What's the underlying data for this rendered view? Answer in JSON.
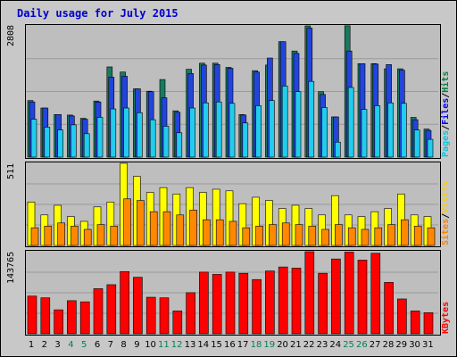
{
  "chart_data": [
    {
      "type": "bar",
      "panel": "hits-files-pages",
      "title": "Daily usage for July 2015",
      "categories": [
        "1",
        "2",
        "3",
        "4",
        "5",
        "6",
        "7",
        "8",
        "9",
        "10",
        "11",
        "12",
        "13",
        "14",
        "15",
        "16",
        "17",
        "18",
        "19",
        "20",
        "21",
        "22",
        "23",
        "24",
        "25",
        "26",
        "27",
        "28",
        "29",
        "30",
        "31"
      ],
      "weekend_days": [
        "4",
        "5",
        "11",
        "12",
        "18",
        "19",
        "25",
        "26"
      ],
      "ymax_label": "2808",
      "ylim": [
        0,
        2808
      ],
      "grid": true,
      "legend": [
        {
          "text": "Pages",
          "color": "#00c8e8"
        },
        {
          "text": "/",
          "color": "#000000"
        },
        {
          "text": "Files",
          "color": "#0000ff"
        },
        {
          "text": "/",
          "color": "#000000"
        },
        {
          "text": "Hits",
          "color": "#008040"
        }
      ],
      "series": [
        {
          "name": "Hits",
          "color": "#1a7a5e",
          "values": [
            1210,
            1050,
            910,
            900,
            830,
            1200,
            1930,
            1820,
            1460,
            1410,
            1660,
            990,
            1880,
            2010,
            2010,
            1920,
            910,
            1850,
            1970,
            2470,
            2270,
            2808,
            1400,
            860,
            2810,
            2000,
            2000,
            1890,
            1890,
            850,
            600
          ]
        },
        {
          "name": "Files",
          "color": "#2244dd",
          "values": [
            1180,
            1050,
            910,
            880,
            810,
            1180,
            1710,
            1730,
            1460,
            1400,
            1270,
            960,
            1790,
            1970,
            1980,
            1900,
            900,
            1820,
            2120,
            2470,
            2220,
            2760,
            1340,
            860,
            2270,
            2000,
            1990,
            1980,
            1860,
            800,
            570
          ]
        },
        {
          "name": "Pages",
          "color": "#22ccee",
          "values": [
            810,
            640,
            580,
            690,
            500,
            850,
            1030,
            1050,
            950,
            800,
            660,
            520,
            1050,
            1160,
            1180,
            1150,
            730,
            1100,
            1210,
            1520,
            1400,
            1620,
            1060,
            320,
            1490,
            1020,
            1100,
            1160,
            1150,
            580,
            380
          ]
        }
      ]
    },
    {
      "type": "bar",
      "panel": "visits-sites",
      "categories": [
        "1",
        "2",
        "3",
        "4",
        "5",
        "6",
        "7",
        "8",
        "9",
        "10",
        "11",
        "12",
        "13",
        "14",
        "15",
        "16",
        "17",
        "18",
        "19",
        "20",
        "21",
        "22",
        "23",
        "24",
        "25",
        "26",
        "27",
        "28",
        "29",
        "30",
        "31"
      ],
      "ymax_label": "511",
      "ylim": [
        0,
        511
      ],
      "grid": true,
      "legend": [
        {
          "text": "Sites",
          "color": "#ff8000"
        },
        {
          "text": "/",
          "color": "#000000"
        },
        {
          "text": "Visits",
          "color": "#ffcc00"
        }
      ],
      "series": [
        {
          "name": "Visits",
          "color": "#ffff00",
          "values": [
            270,
            190,
            250,
            180,
            150,
            240,
            270,
            511,
            430,
            330,
            360,
            320,
            360,
            330,
            350,
            340,
            260,
            300,
            280,
            230,
            250,
            230,
            190,
            310,
            190,
            180,
            210,
            230,
            320,
            190,
            180
          ]
        },
        {
          "name": "Sites",
          "color": "#ff8800",
          "values": [
            110,
            120,
            140,
            120,
            100,
            130,
            120,
            290,
            280,
            210,
            210,
            190,
            220,
            160,
            160,
            150,
            110,
            120,
            130,
            140,
            130,
            120,
            100,
            130,
            110,
            100,
            110,
            130,
            160,
            120,
            110
          ]
        }
      ]
    },
    {
      "type": "bar",
      "panel": "kbytes",
      "categories": [
        "1",
        "2",
        "3",
        "4",
        "5",
        "6",
        "7",
        "8",
        "9",
        "10",
        "11",
        "12",
        "13",
        "14",
        "15",
        "16",
        "17",
        "18",
        "19",
        "20",
        "21",
        "22",
        "23",
        "24",
        "25",
        "26",
        "27",
        "28",
        "29",
        "30",
        "31"
      ],
      "ymax_label": "143765",
      "ylim": [
        0,
        143765
      ],
      "grid": true,
      "legend": [
        {
          "text": "KBytes",
          "color": "#ff0000"
        }
      ],
      "series": [
        {
          "name": "KBytes",
          "color": "#ff0000",
          "values": [
            66000,
            63000,
            42000,
            58000,
            56000,
            79000,
            86000,
            109000,
            99000,
            64000,
            63000,
            40000,
            72000,
            108000,
            104000,
            108000,
            106000,
            95000,
            110000,
            117000,
            115000,
            143765,
            106000,
            131000,
            143000,
            129000,
            141000,
            90000,
            61000,
            40000,
            37000
          ]
        }
      ]
    }
  ]
}
